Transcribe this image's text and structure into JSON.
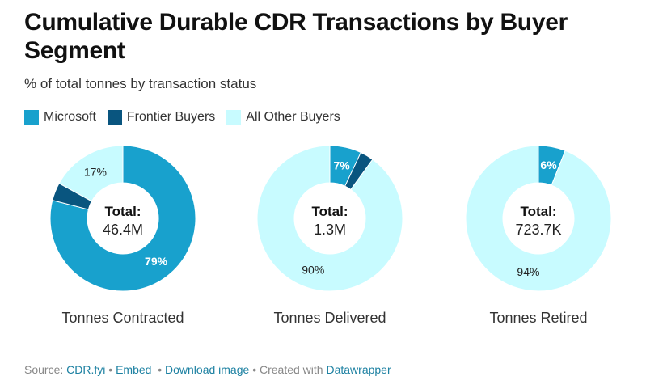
{
  "title": "Cumulative Durable CDR Transactions by Buyer Segment",
  "subtitle": "% of total tonnes by transaction status",
  "colors": {
    "microsoft": "#18a1cd",
    "frontier": "#09557f",
    "other": "#c8fbff"
  },
  "legend": [
    {
      "label": "Microsoft",
      "color": "#18a1cd"
    },
    {
      "label": "Frontier Buyers",
      "color": "#09557f"
    },
    {
      "label": "All Other Buyers",
      "color": "#c8fbff"
    }
  ],
  "chart_data": [
    {
      "type": "pie",
      "title": "Tonnes Contracted",
      "center_label": "Total:",
      "center_value": "46.4M",
      "categories": [
        "Microsoft",
        "Frontier Buyers",
        "All Other Buyers"
      ],
      "values": [
        79,
        4,
        17
      ],
      "labels": [
        "79%",
        "",
        "17%"
      ]
    },
    {
      "type": "pie",
      "title": "Tonnes Delivered",
      "center_label": "Total:",
      "center_value": "1.3M",
      "categories": [
        "Microsoft",
        "Frontier Buyers",
        "All Other Buyers"
      ],
      "values": [
        7,
        3,
        90
      ],
      "labels": [
        "7%",
        "",
        "90%"
      ]
    },
    {
      "type": "pie",
      "title": "Tonnes Retired",
      "center_label": "Total:",
      "center_value": "723.7K",
      "categories": [
        "Microsoft",
        "Frontier Buyers",
        "All Other Buyers"
      ],
      "values": [
        6,
        0,
        94
      ],
      "labels": [
        "6%",
        "",
        "94%"
      ]
    }
  ],
  "footer": {
    "source_prefix": "Source:",
    "source": "CDR.fyi",
    "sep1": "•",
    "embed": "Embed",
    "sep2": "•",
    "download": "Download image",
    "sep3": "•",
    "created_with": "Created with",
    "tool": "Datawrapper"
  }
}
